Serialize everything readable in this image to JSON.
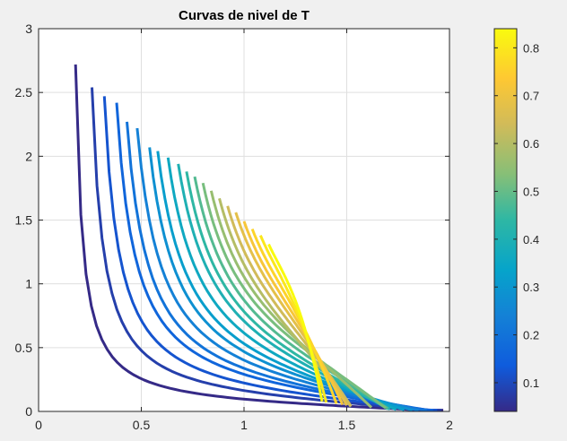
{
  "chart_data": {
    "type": "contour",
    "title": "Curvas de nivel de T",
    "xlabel": "",
    "ylabel": "",
    "xlim": [
      0,
      2
    ],
    "ylim": [
      0,
      3
    ],
    "xticks": [
      "0",
      "0.5",
      "1",
      "1.5",
      "2"
    ],
    "yticks": [
      "0",
      "0.5",
      "1",
      "1.5",
      "2",
      "2.5",
      "3"
    ],
    "grid": true,
    "colorbar": {
      "range": [
        0.04,
        0.84
      ],
      "ticks": [
        "0.1",
        "0.2",
        "0.3",
        "0.4",
        "0.5",
        "0.6",
        "0.7",
        "0.8"
      ],
      "colormap": "parula",
      "placement": "right"
    },
    "series": [
      {
        "level": 0.04,
        "x_start": 0.18,
        "x_end": 1.97,
        "y_start": 2.72
      },
      {
        "level": 0.08,
        "x_start": 0.26,
        "x_end": 1.96,
        "y_start": 2.54
      },
      {
        "level": 0.12,
        "x_start": 0.32,
        "x_end": 1.94,
        "y_start": 2.47
      },
      {
        "level": 0.16,
        "x_start": 0.38,
        "x_end": 1.92,
        "y_start": 2.42
      },
      {
        "level": 0.2,
        "x_start": 0.43,
        "x_end": 1.89,
        "y_start": 2.27
      },
      {
        "level": 0.24,
        "x_start": 0.48,
        "x_end": 1.85,
        "y_start": 2.22
      },
      {
        "level": 0.28,
        "x_start": 0.54,
        "x_end": 1.82,
        "y_start": 2.07
      },
      {
        "level": 0.32,
        "x_start": 0.58,
        "x_end": 1.78,
        "y_start": 2.04
      },
      {
        "level": 0.36,
        "x_start": 0.63,
        "x_end": 1.74,
        "y_start": 1.99
      },
      {
        "level": 0.4,
        "x_start": 0.68,
        "x_end": 1.71,
        "y_start": 1.94
      },
      {
        "level": 0.44,
        "x_start": 0.72,
        "x_end": 1.7,
        "y_start": 1.88
      },
      {
        "level": 0.48,
        "x_start": 0.76,
        "x_end": 1.7,
        "y_start": 1.84
      },
      {
        "level": 0.52,
        "x_start": 0.8,
        "x_end": 1.69,
        "y_start": 1.79
      },
      {
        "level": 0.56,
        "x_start": 0.84,
        "x_end": 1.62,
        "y_start": 1.73
      },
      {
        "level": 0.6,
        "x_start": 0.88,
        "x_end": 1.52,
        "y_start": 1.67
      },
      {
        "level": 0.64,
        "x_start": 0.92,
        "x_end": 1.52,
        "y_start": 1.61
      },
      {
        "level": 0.68,
        "x_start": 0.96,
        "x_end": 1.5,
        "y_start": 1.56
      },
      {
        "level": 0.72,
        "x_start": 1.0,
        "x_end": 1.48,
        "y_start": 1.49
      },
      {
        "level": 0.76,
        "x_start": 1.04,
        "x_end": 1.45,
        "y_start": 1.43
      },
      {
        "level": 0.8,
        "x_start": 1.08,
        "x_end": 1.4,
        "y_start": 1.38
      },
      {
        "level": 0.84,
        "x_start": 1.12,
        "x_end": 1.38,
        "y_start": 1.31
      }
    ]
  }
}
